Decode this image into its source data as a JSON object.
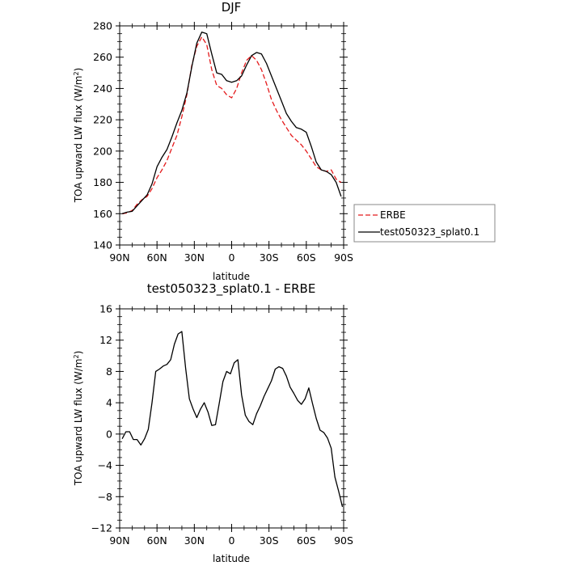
{
  "chart_data": [
    {
      "type": "line",
      "title": "DJF",
      "xlabel": "latitude",
      "ylabel": "TOA upward LW flux (W/m²)",
      "xlim": [
        90,
        -90
      ],
      "ylim": [
        140,
        280
      ],
      "xticks": [
        90,
        60,
        30,
        0,
        -30,
        -60,
        -90
      ],
      "xticklabels": [
        "90N",
        "60N",
        "30N",
        "0",
        "30S",
        "60S",
        "90S"
      ],
      "yticks": [
        140,
        160,
        180,
        200,
        220,
        240,
        260,
        280
      ],
      "yticklabels": [
        "140",
        "160",
        "180",
        "200",
        "220",
        "240",
        "260",
        "280"
      ],
      "legend_position": "right",
      "series": [
        {
          "name": "ERBE",
          "color": "#e41a1c",
          "style": "dashed",
          "x": [
            88,
            84,
            80,
            76,
            72,
            68,
            64,
            60,
            56,
            52,
            48,
            44,
            40,
            36,
            32,
            28,
            24,
            20,
            16,
            12,
            8,
            4,
            0,
            -4,
            -8,
            -12,
            -16,
            -20,
            -24,
            -28,
            -32,
            -36,
            -40,
            -44,
            -48,
            -52,
            -56,
            -60,
            -64,
            -68,
            -72,
            -76,
            -80,
            -84,
            -88
          ],
          "y": [
            160,
            160.5,
            162,
            166,
            169,
            171,
            176,
            183,
            188,
            194,
            202,
            210,
            222,
            236,
            255,
            267,
            273,
            268,
            252,
            242,
            240,
            236,
            234,
            240,
            250,
            258,
            261,
            258,
            252,
            243,
            233,
            226,
            220,
            215,
            210,
            207,
            204,
            200,
            195,
            190,
            188,
            187,
            188,
            182,
            180
          ]
        },
        {
          "name": "test050323_splat0.1",
          "color": "#000000",
          "style": "solid",
          "x": [
            88,
            84,
            80,
            76,
            72,
            68,
            64,
            60,
            56,
            52,
            48,
            44,
            40,
            36,
            32,
            28,
            24,
            20,
            16,
            12,
            8,
            4,
            0,
            -4,
            -8,
            -12,
            -16,
            -20,
            -24,
            -28,
            -32,
            -36,
            -40,
            -44,
            -48,
            -52,
            -56,
            -60,
            -64,
            -68,
            -72,
            -76,
            -80,
            -84,
            -88
          ],
          "y": [
            160,
            161,
            161.5,
            165,
            168.5,
            172,
            179,
            190,
            196,
            201,
            209,
            218,
            226,
            237,
            254,
            269,
            276,
            275,
            262,
            250,
            249,
            245,
            244,
            245,
            248,
            255,
            261,
            263,
            262,
            256,
            248,
            240,
            232,
            224,
            219,
            215,
            214,
            212,
            203,
            193,
            188,
            187,
            185,
            180,
            171
          ]
        }
      ]
    },
    {
      "type": "line",
      "title": "test050323_splat0.1 - ERBE",
      "xlabel": "latitude",
      "ylabel": "TOA upward LW flux (W/m²)",
      "xlim": [
        90,
        -90
      ],
      "ylim": [
        -12,
        16
      ],
      "xticks": [
        90,
        60,
        30,
        0,
        -30,
        -60,
        -90
      ],
      "xticklabels": [
        "90N",
        "60N",
        "30N",
        "0",
        "30S",
        "60S",
        "90S"
      ],
      "yticks": [
        -12,
        -8,
        -4,
        0,
        4,
        8,
        12,
        16
      ],
      "yticklabels": [
        "−12",
        "−8",
        "−4",
        "0",
        "4",
        "8",
        "12",
        "16"
      ],
      "series": [
        {
          "color": "#000000",
          "style": "solid",
          "x": [
            88,
            85,
            82,
            79,
            76,
            73,
            70,
            67,
            64,
            61,
            58,
            55,
            52,
            49,
            46,
            43,
            40,
            37,
            34,
            31,
            28,
            25,
            22,
            19,
            16,
            13,
            10,
            7,
            4,
            1,
            -2,
            -5,
            -8,
            -11,
            -14,
            -17,
            -20,
            -23,
            -26,
            -29,
            -32,
            -35,
            -38,
            -41,
            -44,
            -47,
            -50,
            -53,
            -56,
            -59,
            -62,
            -65,
            -68,
            -71,
            -74,
            -77,
            -80,
            -83,
            -86,
            -89
          ],
          "y": [
            -0.6,
            0.3,
            0.3,
            -0.7,
            -0.7,
            -1.4,
            -0.6,
            0.6,
            4,
            8,
            8.3,
            8.7,
            8.9,
            9.5,
            11.5,
            12.8,
            13.1,
            8.4,
            4.5,
            3.2,
            2.1,
            3.2,
            4,
            2.8,
            1.1,
            1.2,
            3.9,
            6.7,
            8,
            7.7,
            9.1,
            9.5,
            5,
            2.4,
            1.6,
            1.2,
            2.6,
            3.6,
            4.8,
            5.8,
            6.8,
            8.3,
            8.6,
            8.4,
            7.4,
            6,
            5.2,
            4.3,
            3.8,
            4.5,
            5.9,
            3.9,
            2,
            0.5,
            0.2,
            -0.5,
            -1.8,
            -5.5,
            -7.3,
            -9.3
          ]
        }
      ]
    }
  ]
}
